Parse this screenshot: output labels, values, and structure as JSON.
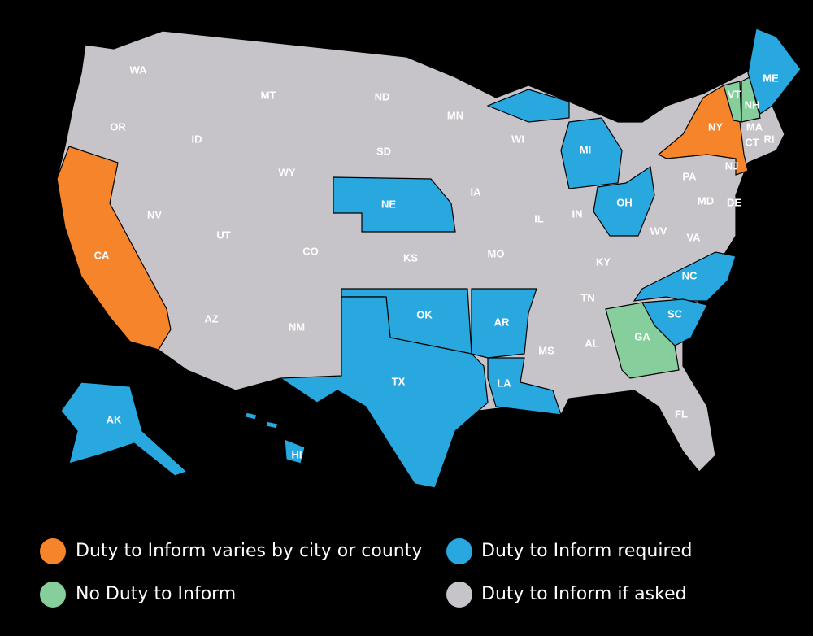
{
  "legend": [
    {
      "label": "Duty to Inform varies by city or county",
      "color": "#f5842a"
    },
    {
      "label": "Duty to Inform required",
      "color": "#29a8e0"
    },
    {
      "label": "No Duty to Inform",
      "color": "#86cf9c"
    },
    {
      "label": "Duty to Inform if asked",
      "color": "#c6c4c9"
    }
  ],
  "states": [
    {
      "label": "WA",
      "category": 3
    },
    {
      "label": "MT",
      "category": 3
    },
    {
      "label": "ND",
      "category": 3
    },
    {
      "label": "MN",
      "category": 3
    },
    {
      "label": "OR",
      "category": 3
    },
    {
      "label": "ID",
      "category": 3
    },
    {
      "label": "WI",
      "category": 3
    },
    {
      "label": "MI",
      "category": 1
    },
    {
      "label": "NY",
      "category": 0
    },
    {
      "label": "VT",
      "category": 2
    },
    {
      "label": "NH",
      "category": 2
    },
    {
      "label": "ME",
      "category": 1
    },
    {
      "label": "MA",
      "category": 3
    },
    {
      "label": "CT",
      "category": 3
    },
    {
      "label": "RI",
      "category": 3
    },
    {
      "label": "SD",
      "category": 3
    },
    {
      "label": "WY",
      "category": 3
    },
    {
      "label": "NE",
      "category": 1
    },
    {
      "label": "IA",
      "category": 3
    },
    {
      "label": "NJ",
      "category": 3
    },
    {
      "label": "PA",
      "category": 3
    },
    {
      "label": "OH",
      "category": 1
    },
    {
      "label": "IN",
      "category": 3
    },
    {
      "label": "IL",
      "category": 3
    },
    {
      "label": "NV",
      "category": 3
    },
    {
      "label": "UT",
      "category": 3
    },
    {
      "label": "CO",
      "category": 3
    },
    {
      "label": "KS",
      "category": 3
    },
    {
      "label": "MO",
      "category": 3
    },
    {
      "label": "CA",
      "category": 0
    },
    {
      "label": "MD",
      "category": 3
    },
    {
      "label": "DE",
      "category": 3
    },
    {
      "label": "WV",
      "category": 3
    },
    {
      "label": "VA",
      "category": 3
    },
    {
      "label": "KY",
      "category": 3
    },
    {
      "label": "TN",
      "category": 3
    },
    {
      "label": "NC",
      "category": 1
    },
    {
      "label": "AZ",
      "category": 3
    },
    {
      "label": "NM",
      "category": 3
    },
    {
      "label": "OK",
      "category": 1
    },
    {
      "label": "AR",
      "category": 1
    },
    {
      "label": "SC",
      "category": 1
    },
    {
      "label": "MS",
      "category": 3
    },
    {
      "label": "AL",
      "category": 3
    },
    {
      "label": "GA",
      "category": 2
    },
    {
      "label": "TX",
      "category": 1
    },
    {
      "label": "LA",
      "category": 1
    },
    {
      "label": "FL",
      "category": 3
    },
    {
      "label": "AK",
      "category": 1
    },
    {
      "label": "HI",
      "category": 1
    }
  ]
}
